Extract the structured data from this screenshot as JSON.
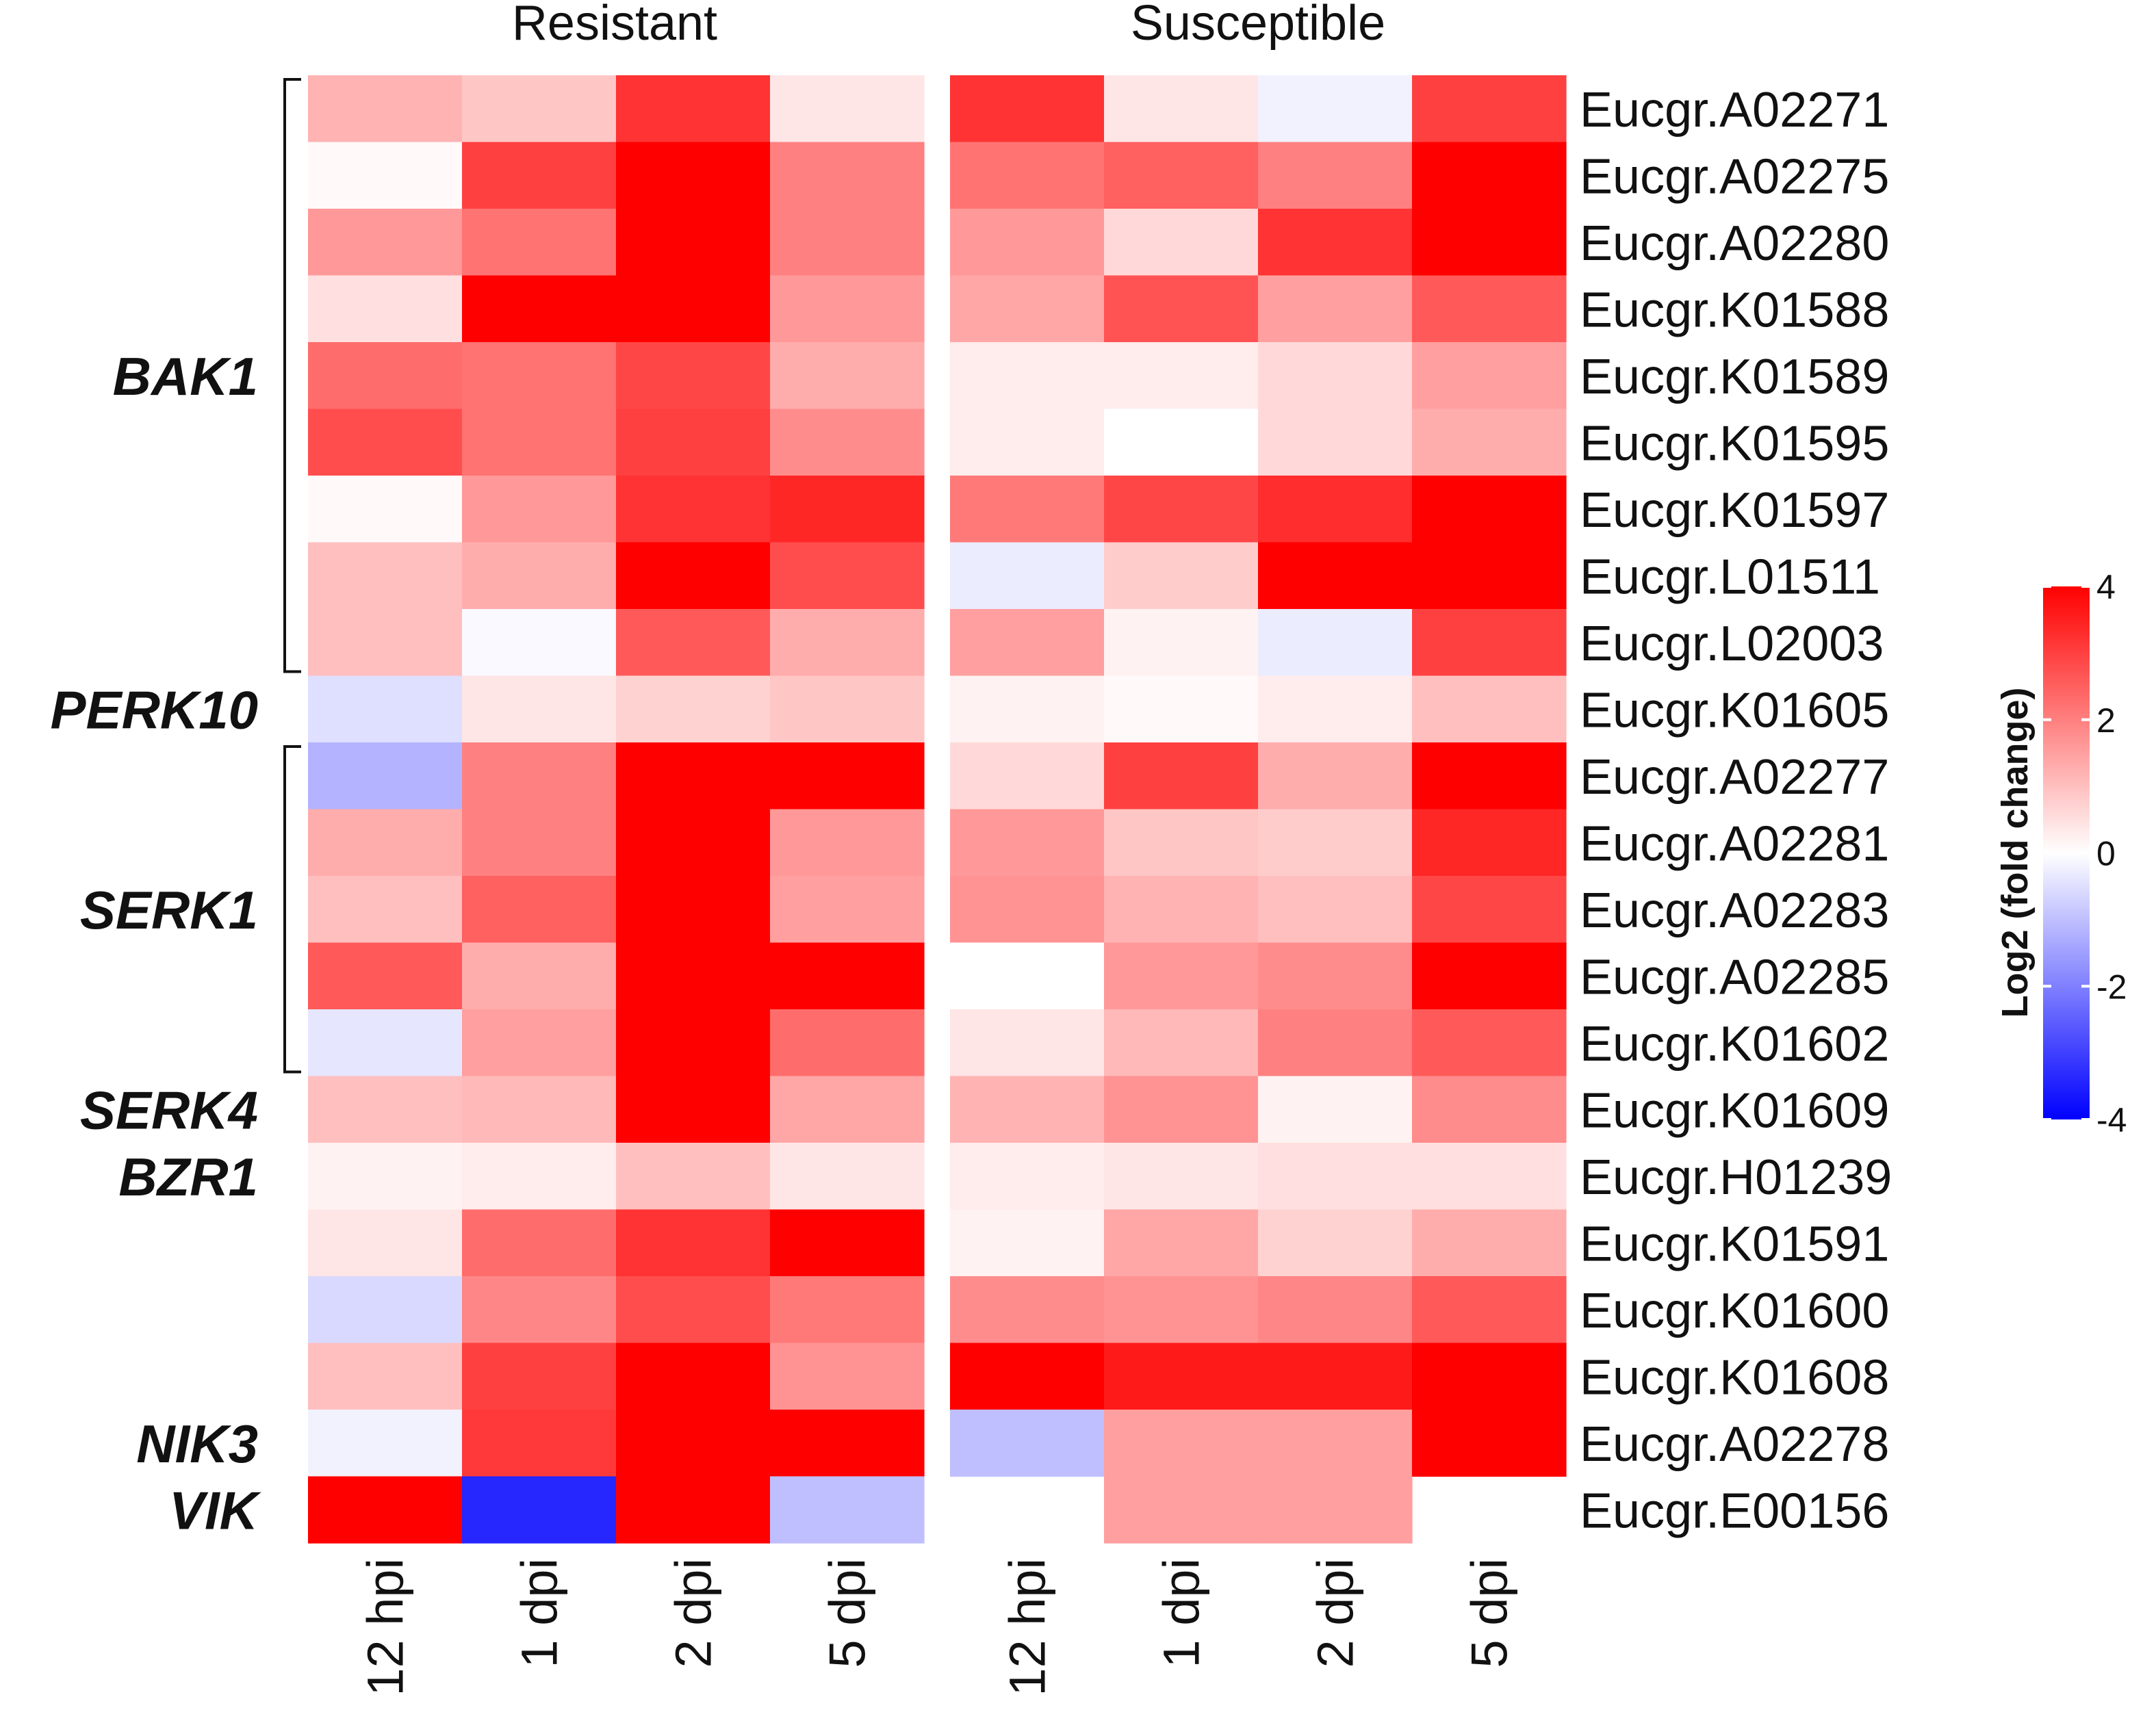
{
  "chart_data": {
    "type": "heatmap",
    "panels": [
      "Resistant",
      "Susceptible"
    ],
    "columns": [
      "12 hpi",
      "1 dpi",
      "2 dpi",
      "5 dpi"
    ],
    "genes": [
      "Eucgr.A02271",
      "Eucgr.A02275",
      "Eucgr.A02280",
      "Eucgr.K01588",
      "Eucgr.K01589",
      "Eucgr.K01595",
      "Eucgr.K01597",
      "Eucgr.L01511",
      "Eucgr.L02003",
      "Eucgr.K01605",
      "Eucgr.A02277",
      "Eucgr.A02281",
      "Eucgr.A02283",
      "Eucgr.A02285",
      "Eucgr.K01602",
      "Eucgr.K01609",
      "Eucgr.H01239",
      "Eucgr.K01591",
      "Eucgr.K01600",
      "Eucgr.K01608",
      "Eucgr.A02278",
      "Eucgr.E00156"
    ],
    "groups": [
      {
        "name": "BAK1",
        "first_row": 0,
        "last_row": 8,
        "bracket": true
      },
      {
        "name": "PERK10",
        "first_row": 9,
        "last_row": 9,
        "bracket": false
      },
      {
        "name": "SERK1",
        "first_row": 10,
        "last_row": 14,
        "bracket": true
      },
      {
        "name": "SERK4",
        "first_row": 15,
        "last_row": 15,
        "bracket": false
      },
      {
        "name": "BZR1",
        "first_row": 16,
        "last_row": 16,
        "bracket": false
      },
      {
        "name": "NIK3",
        "first_row": 20,
        "last_row": 20,
        "bracket": false
      },
      {
        "name": "VIK",
        "first_row": 21,
        "last_row": 21,
        "bracket": false
      }
    ],
    "values": {
      "Resistant": [
        [
          1.2,
          0.9,
          3.2,
          0.4
        ],
        [
          0.1,
          3.0,
          4.0,
          2.0
        ],
        [
          1.6,
          2.2,
          4.0,
          2.0
        ],
        [
          0.5,
          4.0,
          4.0,
          1.6
        ],
        [
          2.3,
          2.2,
          2.9,
          1.3
        ],
        [
          2.8,
          2.2,
          3.0,
          1.8
        ],
        [
          0.1,
          1.6,
          3.2,
          3.4
        ],
        [
          1.0,
          1.3,
          4.0,
          2.8
        ],
        [
          1.0,
          -0.1,
          2.6,
          1.3
        ],
        [
          -0.5,
          0.4,
          0.7,
          0.9
        ],
        [
          -1.2,
          2.0,
          4.0,
          4.0
        ],
        [
          1.3,
          2.0,
          4.0,
          1.6
        ],
        [
          1.0,
          2.5,
          4.0,
          1.5
        ],
        [
          2.6,
          1.3,
          4.0,
          4.0
        ],
        [
          -0.4,
          1.5,
          4.0,
          2.3
        ],
        [
          1.0,
          1.1,
          4.0,
          1.4
        ],
        [
          0.2,
          0.3,
          1.0,
          0.4
        ],
        [
          0.4,
          2.3,
          3.2,
          4.0
        ],
        [
          -0.6,
          1.9,
          2.8,
          2.1
        ],
        [
          1.0,
          3.0,
          4.0,
          1.7
        ],
        [
          -0.2,
          3.1,
          4.0,
          4.0
        ],
        [
          4.0,
          -3.4,
          4.0,
          -1.0
        ]
      ],
      "Susceptible": [
        [
          3.2,
          0.4,
          -0.2,
          3.0
        ],
        [
          2.2,
          2.5,
          2.0,
          4.0
        ],
        [
          1.6,
          0.6,
          3.2,
          4.0
        ],
        [
          1.4,
          2.7,
          1.5,
          2.6
        ],
        [
          0.3,
          0.3,
          0.6,
          1.5
        ],
        [
          0.3,
          0.0,
          0.6,
          1.3
        ],
        [
          2.1,
          2.9,
          3.3,
          4.0
        ],
        [
          -0.3,
          0.8,
          4.0,
          4.0
        ],
        [
          1.5,
          0.2,
          -0.3,
          3.0
        ],
        [
          0.2,
          0.1,
          0.3,
          1.0
        ],
        [
          0.6,
          3.0,
          1.3,
          4.0
        ],
        [
          1.6,
          0.9,
          0.8,
          3.4
        ],
        [
          1.7,
          1.2,
          1.0,
          2.9
        ],
        [
          0.0,
          1.6,
          1.8,
          4.0
        ],
        [
          0.4,
          1.1,
          2.0,
          2.6
        ],
        [
          1.2,
          1.7,
          0.2,
          1.8
        ],
        [
          0.3,
          0.4,
          0.5,
          0.5
        ],
        [
          0.2,
          1.4,
          0.7,
          1.3
        ],
        [
          1.8,
          1.7,
          1.9,
          2.6
        ],
        [
          4.0,
          3.6,
          3.6,
          4.0
        ],
        [
          -1.0,
          1.5,
          1.5,
          4.0
        ],
        [
          null,
          1.5,
          1.5,
          null
        ]
      ]
    },
    "colorbar": {
      "title": "Log2 (fold change)",
      "min": -4,
      "max": 4,
      "ticks": [
        4,
        2,
        0,
        -2,
        -4
      ],
      "low_color": "#0000ff",
      "mid_color": "#ffffff",
      "high_color": "#ff0000"
    }
  }
}
